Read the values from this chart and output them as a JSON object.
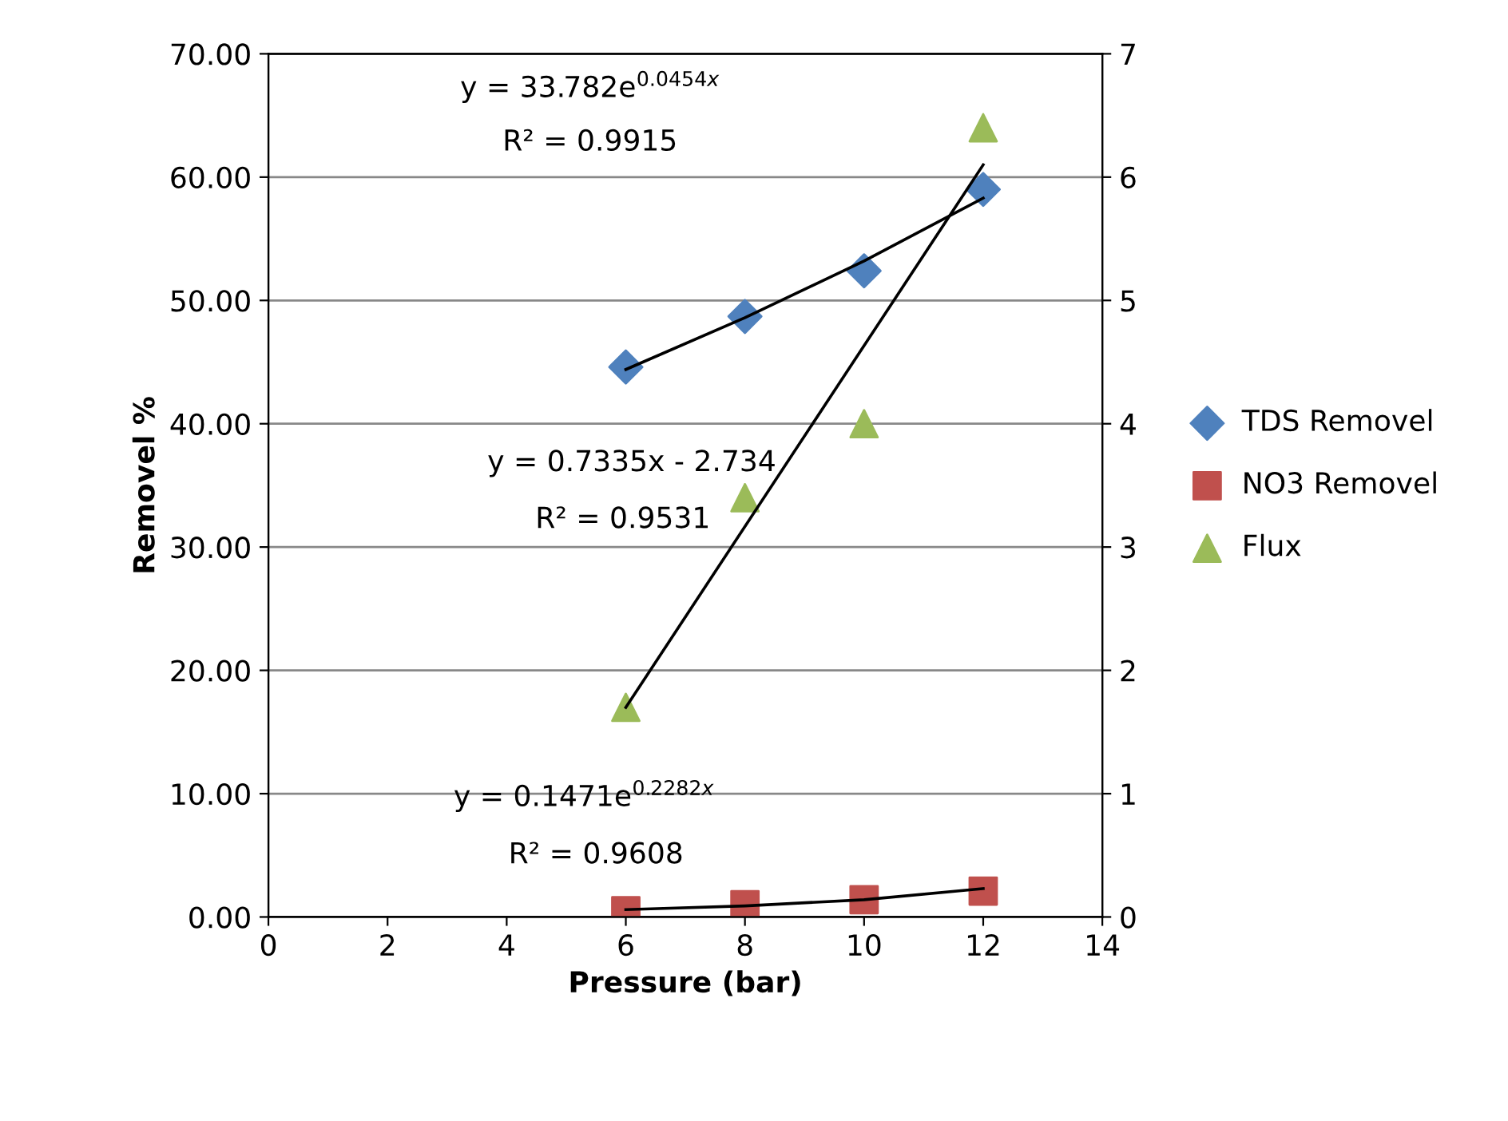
{
  "chart_data": {
    "type": "scatter",
    "xlabel": "Pressure (bar)",
    "ylabel": "Removel %",
    "xlim": [
      0,
      14
    ],
    "xticks": [
      0,
      2,
      4,
      6,
      8,
      10,
      12,
      14
    ],
    "ylim": [
      0,
      70
    ],
    "yticks": [
      {
        "value": 0,
        "label": "0.00"
      },
      {
        "value": 10,
        "label": "10.00"
      },
      {
        "value": 20,
        "label": "20.00"
      },
      {
        "value": 30,
        "label": "30.00"
      },
      {
        "value": 40,
        "label": "40.00"
      },
      {
        "value": 50,
        "label": "50.00"
      },
      {
        "value": 60,
        "label": "60.00"
      },
      {
        "value": 70,
        "label": "70.00"
      }
    ],
    "y2lim": [
      0,
      7
    ],
    "y2ticks": [
      0,
      1,
      2,
      3,
      4,
      5,
      6,
      7
    ],
    "grid": "y",
    "legend": "right",
    "series": [
      {
        "name": "TDS Removel",
        "marker": "diamond",
        "color": "#4f81bd",
        "x": [
          6,
          8,
          10,
          12
        ],
        "values": [
          44.6,
          48.7,
          52.4,
          59.0
        ]
      },
      {
        "name": "NO3 Removel",
        "marker": "square",
        "color": "#c0504d",
        "x": [
          6,
          8,
          10,
          12
        ],
        "values": [
          0.5,
          1.0,
          1.4,
          2.1
        ]
      },
      {
        "name": "Flux",
        "marker": "triangle",
        "color": "#9bbb59",
        "axis": "y2",
        "x": [
          6,
          8,
          10,
          12
        ],
        "values": [
          1.7,
          3.4,
          4.0,
          6.4
        ]
      },
      {
        "type": "line",
        "marker": "none",
        "color": "#000000",
        "x": [
          6,
          8,
          10,
          12
        ],
        "values": [
          44.4,
          48.6,
          53.2,
          58.3
        ]
      },
      {
        "type": "line",
        "marker": "none",
        "color": "#000000",
        "x": [
          6,
          8,
          10,
          12
        ],
        "values": [
          0.6,
          0.9,
          1.4,
          2.3
        ]
      },
      {
        "type": "line",
        "marker": "none",
        "color": "#000000",
        "axis": "y2",
        "x": [
          6,
          12
        ],
        "values": [
          1.7,
          6.1
        ]
      }
    ],
    "annotations": [
      "y = 33.782e$^{0.0454x}$",
      "R² = 0.9915",
      "y = 0.7335x - 2.734",
      "R² = 0.9531",
      "y = 0.1471e$^{0.2282x}$",
      "R² = 0.9608"
    ]
  }
}
